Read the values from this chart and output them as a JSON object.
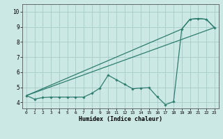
{
  "title": "",
  "xlabel": "Humidex (Indice chaleur)",
  "ylabel": "",
  "background_color": "#cce8e5",
  "grid_color": "#aacfcc",
  "line_color": "#2d7d6e",
  "x_ticks": [
    0,
    1,
    2,
    3,
    4,
    5,
    6,
    7,
    8,
    9,
    10,
    11,
    12,
    13,
    14,
    15,
    16,
    17,
    18,
    19,
    20,
    21,
    22,
    23
  ],
  "y_ticks": [
    4,
    5,
    6,
    7,
    8,
    9,
    10
  ],
  "xlim": [
    -0.5,
    23.5
  ],
  "ylim": [
    3.6,
    10.5
  ],
  "line1_x": [
    0,
    1,
    2,
    3,
    4,
    5,
    6,
    7,
    8,
    9,
    10,
    11,
    12,
    13,
    14,
    15,
    16,
    17,
    18,
    19,
    20,
    21,
    22,
    23
  ],
  "line1_y": [
    4.45,
    4.22,
    4.32,
    4.35,
    4.35,
    4.35,
    4.35,
    4.35,
    4.6,
    4.95,
    5.8,
    5.5,
    5.2,
    4.9,
    4.95,
    4.97,
    4.37,
    3.85,
    4.05,
    8.85,
    9.5,
    9.55,
    9.5,
    8.95
  ],
  "line2_x": [
    0,
    23
  ],
  "line2_y": [
    4.45,
    8.95
  ],
  "line3_x": [
    0,
    19,
    20,
    21,
    22,
    23
  ],
  "line3_y": [
    4.45,
    8.85,
    9.5,
    9.55,
    9.5,
    8.95
  ]
}
